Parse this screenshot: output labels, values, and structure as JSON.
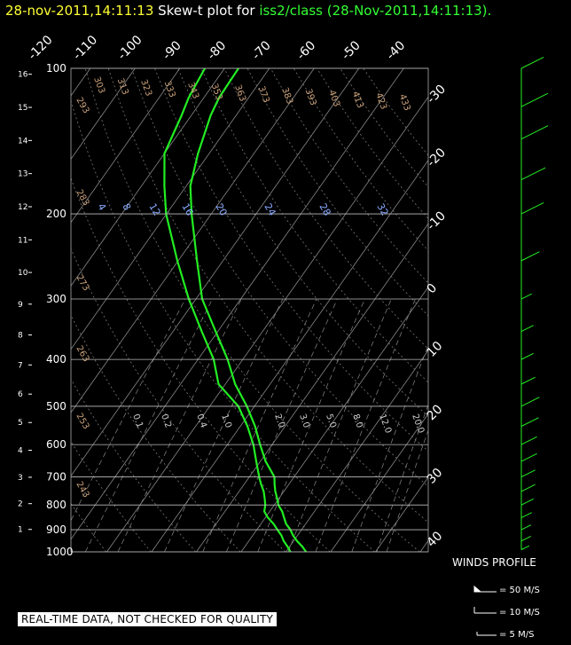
{
  "header": {
    "timestamp": "28-nov-2011,14:11:13",
    "title_prefix": "Skew-t plot for",
    "source": "iss2/class (28-Nov-2011,14:11:13)."
  },
  "footer": {
    "quality_note": "REAL-TIME DATA, NOT CHECKED FOR QUALITY",
    "winds_label": "WINDS PROFILE",
    "barb_legend": [
      "= 50 M/S",
      "= 10 M/S",
      "= 5 M/S"
    ]
  },
  "colors": {
    "profile": "#22ee22",
    "isobar": "#bbbbbb",
    "isotherm": "#888888",
    "dry_adiabat_label": "#c9a07a",
    "mixing_ratio_label": "#88aaff",
    "wind_barb": "#22ee22"
  },
  "chart_data": {
    "type": "skew-t",
    "pressure_ticks": [
      "100",
      "200",
      "300",
      "400",
      "500",
      "600",
      "700",
      "800",
      "900",
      "1000"
    ],
    "height_ticks": [
      "1",
      "2",
      "3",
      "4",
      "5",
      "6",
      "7",
      "8",
      "9",
      "10",
      "11",
      "12",
      "13",
      "14",
      "15",
      "16"
    ],
    "top_temperature_labels": [
      "-120",
      "-110",
      "-100",
      "-90",
      "-80",
      "-70",
      "-60",
      "-50",
      "-40"
    ],
    "right_temperature_labels": [
      "-30",
      "-20",
      "-10",
      "0",
      "10",
      "20",
      "30",
      "40"
    ],
    "dry_adiabat_labels": [
      "303",
      "313",
      "323",
      "333",
      "343",
      "353",
      "363",
      "373",
      "383",
      "393",
      "403",
      "413",
      "423",
      "433",
      "293",
      "283",
      "273",
      "263",
      "253",
      "243"
    ],
    "mixing_ratio_labels": [
      "4",
      "8",
      "12",
      "16",
      "20",
      "24",
      "28",
      "32"
    ],
    "lower_mixing_ratio_labels": [
      "0.1",
      "0.2",
      "0.4",
      "1.0",
      "2.0",
      "3.0",
      "5.0",
      "8.0",
      "12.0",
      "20.0"
    ],
    "xlim": [
      -120,
      40
    ],
    "ylim": [
      1000,
      100
    ],
    "temperature_profile": [
      {
        "p": 1000,
        "t": 14.5
      },
      {
        "p": 975,
        "t": 12.8
      },
      {
        "p": 950,
        "t": 10.8
      },
      {
        "p": 925,
        "t": 9.0
      },
      {
        "p": 900,
        "t": 7.5
      },
      {
        "p": 875,
        "t": 5.6
      },
      {
        "p": 850,
        "t": 4.2
      },
      {
        "p": 825,
        "t": 2.8
      },
      {
        "p": 800,
        "t": 0.9
      },
      {
        "p": 775,
        "t": -0.4
      },
      {
        "p": 750,
        "t": -1.9
      },
      {
        "p": 725,
        "t": -3.2
      },
      {
        "p": 700,
        "t": -4.4
      },
      {
        "p": 650,
        "t": -8.8
      },
      {
        "p": 600,
        "t": -12.7
      },
      {
        "p": 550,
        "t": -16.7
      },
      {
        "p": 500,
        "t": -21.7
      },
      {
        "p": 450,
        "t": -27.8
      },
      {
        "p": 400,
        "t": -33.4
      },
      {
        "p": 350,
        "t": -40.5
      },
      {
        "p": 300,
        "t": -48.6
      },
      {
        "p": 250,
        "t": -55.8
      },
      {
        "p": 200,
        "t": -64.4
      },
      {
        "p": 175,
        "t": -69.1
      },
      {
        "p": 150,
        "t": -72.5
      },
      {
        "p": 125,
        "t": -75.7
      },
      {
        "p": 115,
        "t": -76.6
      },
      {
        "p": 100,
        "t": -76.9
      }
    ],
    "dewpoint_profile": [
      {
        "p": 1000,
        "t": 11.0
      },
      {
        "p": 975,
        "t": 9.5
      },
      {
        "p": 950,
        "t": 7.8
      },
      {
        "p": 925,
        "t": 6.4
      },
      {
        "p": 900,
        "t": 4.6
      },
      {
        "p": 875,
        "t": 2.8
      },
      {
        "p": 850,
        "t": 0.6
      },
      {
        "p": 825,
        "t": -1.2
      },
      {
        "p": 800,
        "t": -2.0
      },
      {
        "p": 775,
        "t": -3.2
      },
      {
        "p": 750,
        "t": -4.5
      },
      {
        "p": 725,
        "t": -6.2
      },
      {
        "p": 700,
        "t": -7.8
      },
      {
        "p": 650,
        "t": -10.9
      },
      {
        "p": 600,
        "t": -14.2
      },
      {
        "p": 550,
        "t": -18.4
      },
      {
        "p": 500,
        "t": -23.6
      },
      {
        "p": 450,
        "t": -31.5
      },
      {
        "p": 400,
        "t": -36.5
      },
      {
        "p": 350,
        "t": -43.6
      },
      {
        "p": 300,
        "t": -51.6
      },
      {
        "p": 250,
        "t": -60.2
      },
      {
        "p": 200,
        "t": -70.1
      },
      {
        "p": 175,
        "t": -74.9
      },
      {
        "p": 150,
        "t": -80.0
      },
      {
        "p": 125,
        "t": -82.2
      },
      {
        "p": 115,
        "t": -83.4
      },
      {
        "p": 100,
        "t": -84.4
      }
    ],
    "wind_profile_mps": [
      {
        "p": 990,
        "spd": 3
      },
      {
        "p": 950,
        "spd": 5
      },
      {
        "p": 900,
        "spd": 5
      },
      {
        "p": 850,
        "spd": 6
      },
      {
        "p": 800,
        "spd": 8
      },
      {
        "p": 750,
        "spd": 10
      },
      {
        "p": 700,
        "spd": 10
      },
      {
        "p": 650,
        "spd": 12
      },
      {
        "p": 600,
        "spd": 12
      },
      {
        "p": 550,
        "spd": 14
      },
      {
        "p": 500,
        "spd": 15
      },
      {
        "p": 450,
        "spd": 10
      },
      {
        "p": 400,
        "spd": 8
      },
      {
        "p": 350,
        "spd": 8
      },
      {
        "p": 300,
        "spd": 6
      },
      {
        "p": 250,
        "spd": 15
      },
      {
        "p": 200,
        "spd": 20
      },
      {
        "p": 170,
        "spd": 22
      },
      {
        "p": 140,
        "spd": 25
      },
      {
        "p": 120,
        "spd": 25
      },
      {
        "p": 100,
        "spd": 20
      }
    ]
  }
}
